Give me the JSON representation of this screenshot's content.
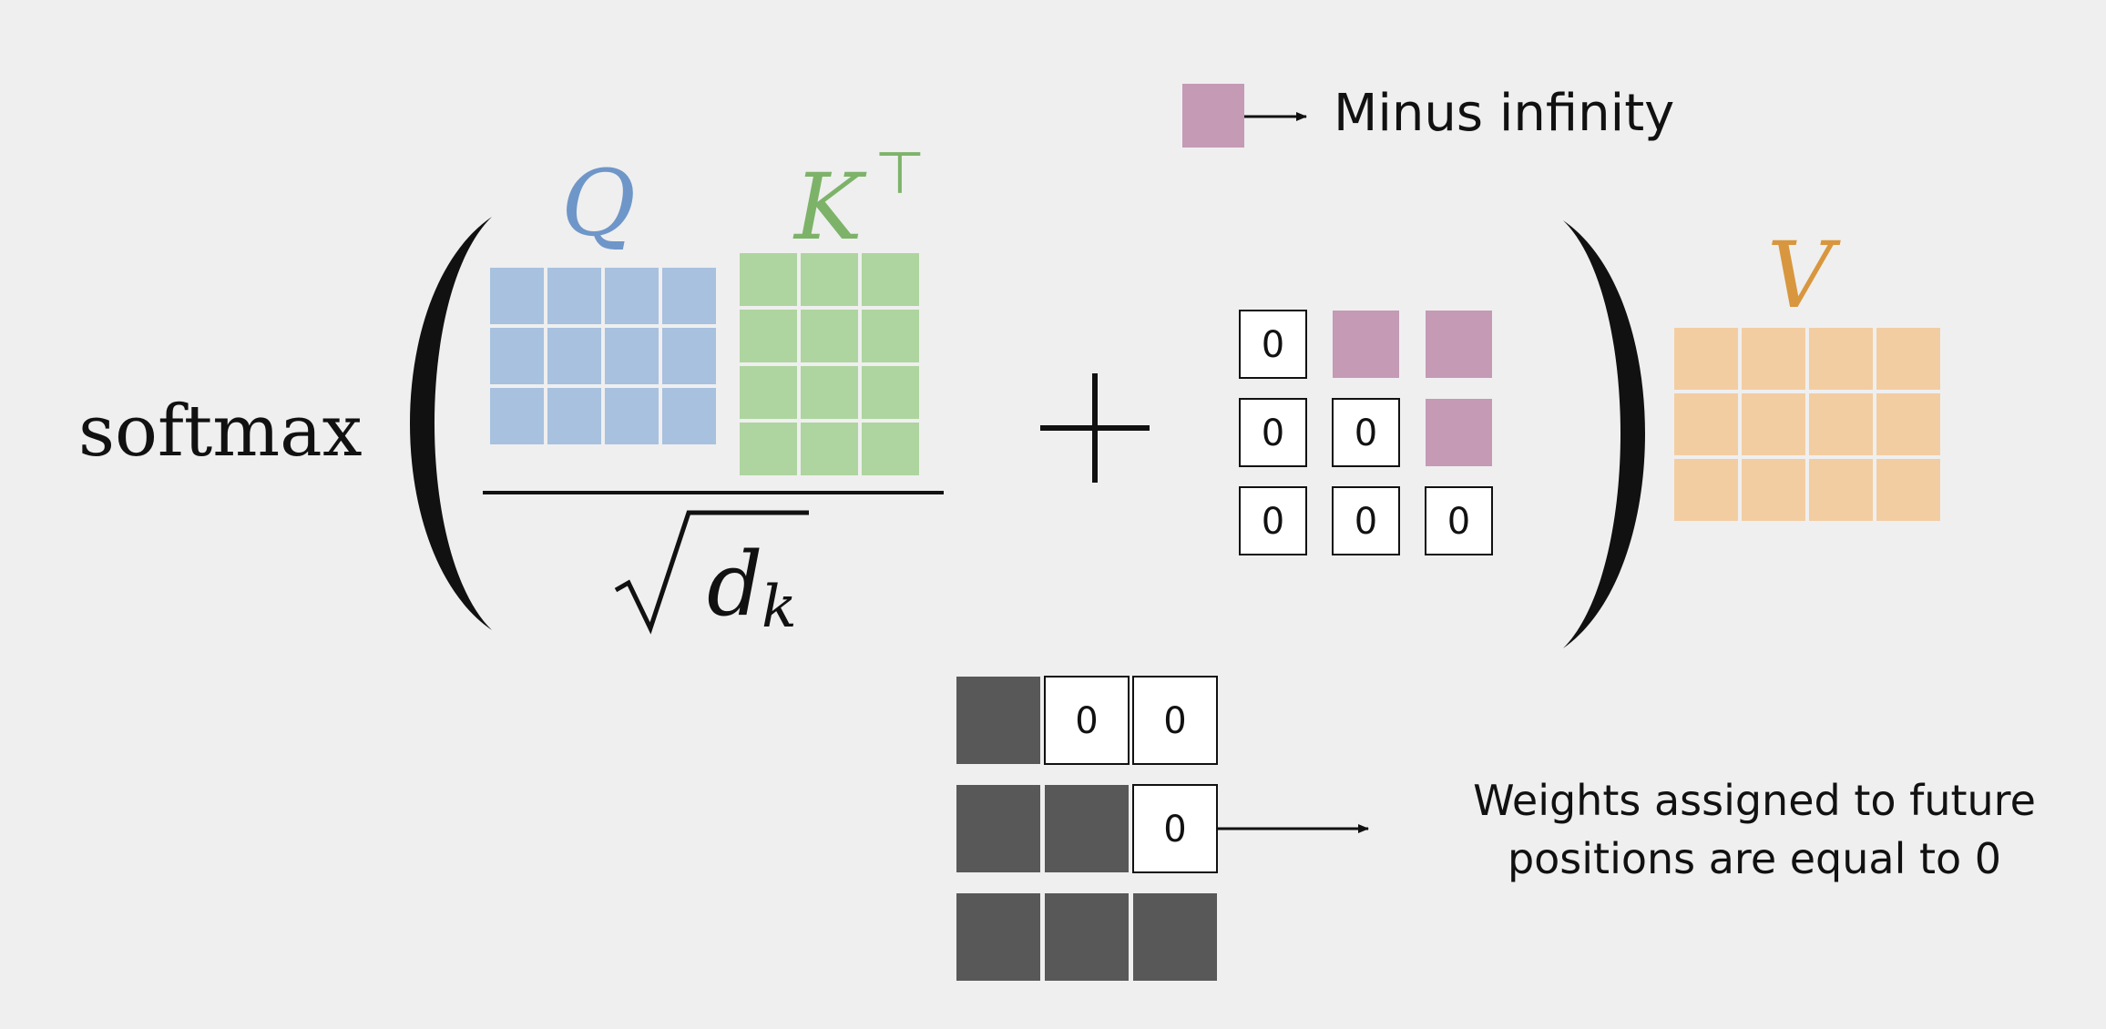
{
  "legend": {
    "color": "#c49ab5",
    "label": "Minus infinity"
  },
  "formula": {
    "function": "softmax",
    "q_symbol": "Q",
    "k_symbol": "K",
    "k_superscript": "⊤",
    "denominator_base": "d",
    "denominator_subscript": "k",
    "plus": "+",
    "v_symbol": "V"
  },
  "colors": {
    "q": "#a7c1df",
    "k": "#aed59f",
    "v": "#f3cda2",
    "q_text": "#6f96c8",
    "k_text": "#7db369",
    "v_text": "#d8973e",
    "minus_inf": "#c49ab5",
    "weight": "#585858",
    "ink": "#111111"
  },
  "q_matrix": {
    "rows": 3,
    "cols": 4
  },
  "k_matrix": {
    "rows": 4,
    "cols": 3
  },
  "v_matrix": {
    "rows": 3,
    "cols": 4
  },
  "mask_matrix": [
    [
      "0",
      "-inf",
      "-inf"
    ],
    [
      "0",
      "0",
      "-inf"
    ],
    [
      "0",
      "0",
      "0"
    ]
  ],
  "weights_matrix": [
    [
      "weight",
      "0",
      "0"
    ],
    [
      "weight",
      "weight",
      "0"
    ],
    [
      "weight",
      "weight",
      "weight"
    ]
  ],
  "annotation": {
    "line1": "Weights assigned to future",
    "line2": "positions are equal to 0"
  }
}
